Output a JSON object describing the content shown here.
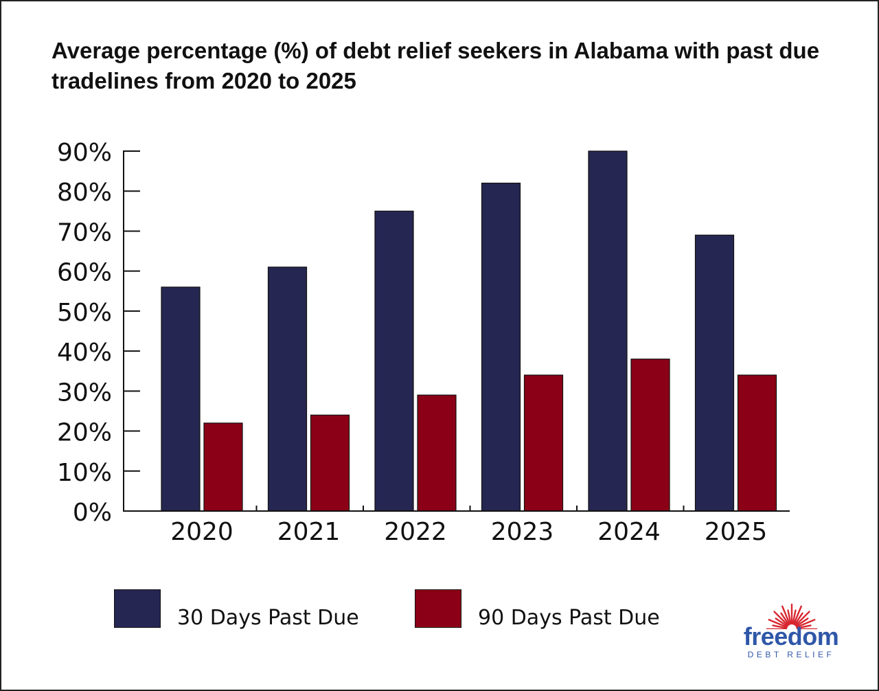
{
  "chart_data": {
    "type": "bar",
    "title": "Average percentage (%) of debt relief seekers in Alabama with past due tradelines from 2020 to 2025",
    "categories": [
      "2020",
      "2021",
      "2022",
      "2023",
      "2024",
      "2025"
    ],
    "series": [
      {
        "name": "30 Days Past Due",
        "color": "#262652",
        "values": [
          56,
          61,
          75,
          82,
          90,
          69
        ]
      },
      {
        "name": "90 Days Past Due",
        "color": "#8b0016",
        "values": [
          22,
          24,
          29,
          34,
          38,
          34
        ]
      }
    ],
    "ylim": [
      0,
      90
    ],
    "yticks": [
      0,
      10,
      20,
      30,
      40,
      50,
      60,
      70,
      80,
      90
    ],
    "ytick_labels": [
      "0%",
      "10%",
      "20%",
      "30%",
      "40%",
      "50%",
      "60%",
      "70%",
      "80%",
      "90%"
    ],
    "xlabel": "",
    "ylabel": "",
    "grid": false,
    "legend_position": "bottom"
  },
  "branding": {
    "logo_word": "freedom",
    "logo_sub": "DEBT RELIEF",
    "logo_color": "#2f57a8",
    "logo_ray_color": "#d8262f"
  }
}
